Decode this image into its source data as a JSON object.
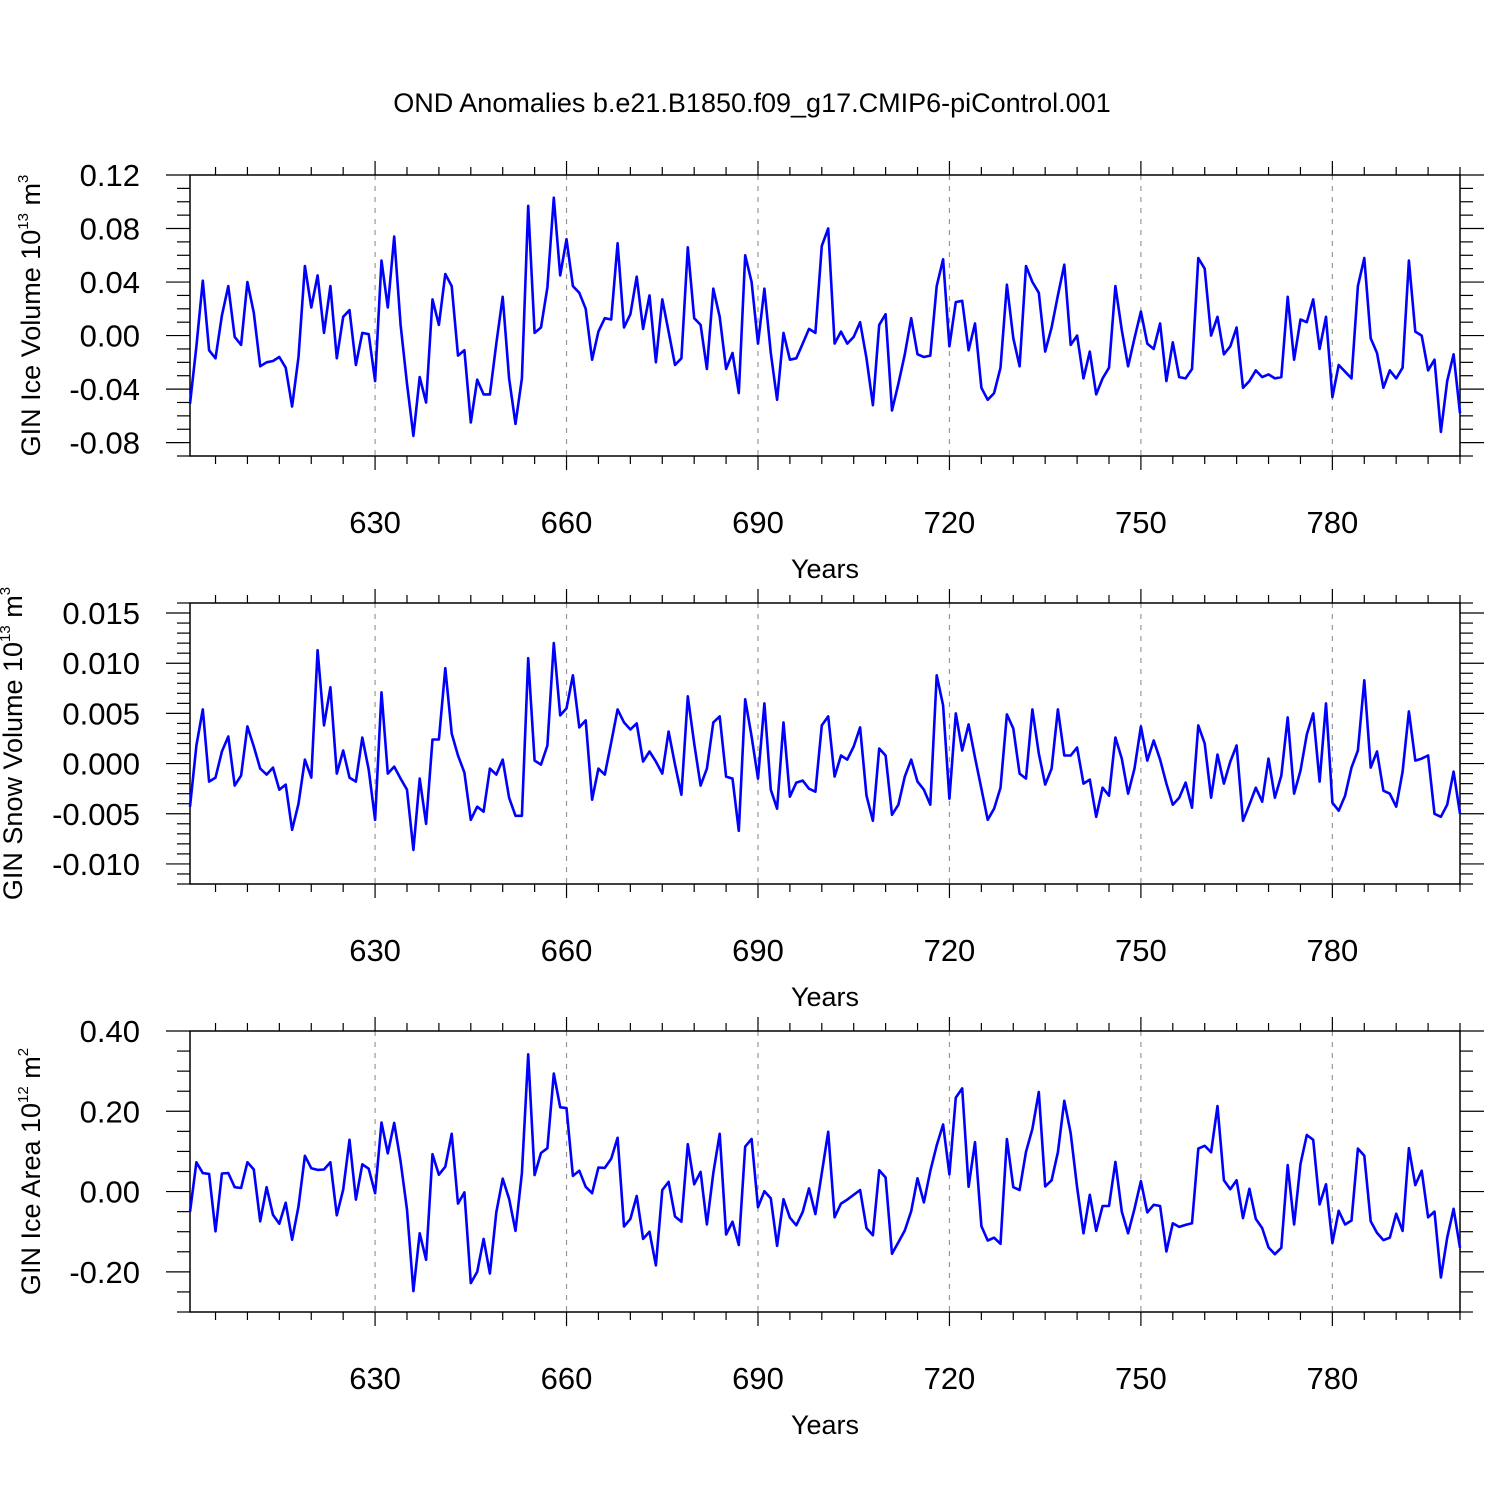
{
  "title": "OND Anomalies b.e21.B1850.f09_g17.CMIP6-piControl.001",
  "colors": {
    "line": "#0000ff",
    "grid": "#999999",
    "axis": "#000000"
  },
  "chart_data": [
    {
      "type": "line",
      "ylabel": {
        "text": "GIN Ice Volume 10",
        "exp": "13",
        "unit": " m",
        "unit_exp": "3"
      },
      "xlabel": "Years",
      "xlim": [
        601,
        800
      ],
      "ylim": [
        -0.09,
        0.12
      ],
      "x_ticks": [
        630,
        660,
        690,
        720,
        750,
        780
      ],
      "x_tick_labels": [
        "630",
        "660",
        "690",
        "720",
        "750",
        "780"
      ],
      "y_ticks": [
        -0.08,
        -0.04,
        0.0,
        0.04,
        0.08,
        0.12
      ],
      "y_tick_labels": [
        "-0.08",
        "-0.04",
        "0.00",
        "0.04",
        "0.08",
        "0.12"
      ],
      "y_minor_step": 0.01,
      "series": [
        {
          "name": "GIN Ice Volume",
          "x_start": 601,
          "values": [
            -0.051,
            -0.008,
            0.041,
            -0.011,
            -0.017,
            0.015,
            0.037,
            -0.001,
            -0.007,
            0.04,
            0.017,
            -0.023,
            -0.02,
            -0.019,
            -0.016,
            -0.024,
            -0.053,
            -0.016,
            0.052,
            0.021,
            0.045,
            0.002,
            0.037,
            -0.017,
            0.014,
            0.019,
            -0.022,
            0.002,
            0.001,
            -0.034,
            0.056,
            0.021,
            0.074,
            0.008,
            -0.036,
            -0.075,
            -0.031,
            -0.05,
            0.027,
            0.008,
            0.046,
            0.037,
            -0.015,
            -0.011,
            -0.065,
            -0.033,
            -0.044,
            -0.044,
            -0.006,
            0.029,
            -0.032,
            -0.066,
            -0.032,
            0.097,
            0.002,
            0.006,
            0.036,
            0.103,
            0.045,
            0.072,
            0.037,
            0.032,
            0.02,
            -0.018,
            0.003,
            0.013,
            0.012,
            0.069,
            0.006,
            0.016,
            0.044,
            0.005,
            0.03,
            -0.02,
            0.027,
            0.003,
            -0.022,
            -0.017,
            0.066,
            0.013,
            0.008,
            -0.025,
            0.035,
            0.014,
            -0.025,
            -0.013,
            -0.043,
            0.06,
            0.04,
            -0.006,
            0.035,
            -0.013,
            -0.048,
            0.002,
            -0.018,
            -0.017,
            -0.006,
            0.005,
            0.002,
            0.067,
            0.08,
            -0.006,
            0.003,
            -0.006,
            -0.001,
            0.01,
            -0.017,
            -0.052,
            0.008,
            0.016,
            -0.056,
            -0.036,
            -0.014,
            0.013,
            -0.014,
            -0.016,
            -0.015,
            0.037,
            0.057,
            -0.008,
            0.025,
            0.026,
            -0.011,
            0.009,
            -0.039,
            -0.048,
            -0.043,
            -0.024,
            0.038,
            -0.002,
            -0.023,
            0.052,
            0.04,
            0.032,
            -0.012,
            0.006,
            0.03,
            0.053,
            -0.007,
            0.0,
            -0.032,
            -0.012,
            -0.044,
            -0.032,
            -0.024,
            0.037,
            0.004,
            -0.023,
            -0.002,
            0.018,
            -0.006,
            -0.01,
            0.009,
            -0.034,
            -0.005,
            -0.031,
            -0.032,
            -0.025,
            0.058,
            0.05,
            0.0,
            0.014,
            -0.014,
            -0.008,
            0.006,
            -0.039,
            -0.034,
            -0.026,
            -0.031,
            -0.029,
            -0.032,
            -0.031,
            0.029,
            -0.018,
            0.012,
            0.01,
            0.027,
            -0.01,
            0.014,
            -0.046,
            -0.022,
            -0.027,
            -0.032,
            0.037,
            0.058,
            -0.002,
            -0.013,
            -0.039,
            -0.026,
            -0.032,
            -0.024,
            0.056,
            0.003,
            0.0,
            -0.026,
            -0.018,
            -0.072,
            -0.034,
            -0.014,
            -0.058
          ]
        }
      ]
    },
    {
      "type": "line",
      "ylabel": {
        "text": "GIN Snow Volume 10",
        "exp": "13",
        "unit": " m",
        "unit_exp": "3"
      },
      "xlabel": "Years",
      "xlim": [
        601,
        800
      ],
      "ylim": [
        -0.012,
        0.016
      ],
      "x_ticks": [
        630,
        660,
        690,
        720,
        750,
        780
      ],
      "x_tick_labels": [
        "630",
        "660",
        "690",
        "720",
        "750",
        "780"
      ],
      "y_ticks": [
        -0.01,
        -0.005,
        0.0,
        0.005,
        0.01,
        0.015
      ],
      "y_tick_labels": [
        "-0.010",
        "-0.005",
        "0.000",
        "0.005",
        "0.010",
        "0.015"
      ],
      "y_minor_step": 0.001,
      "series": [
        {
          "name": "GIN Snow Volume",
          "x_start": 601,
          "values": [
            -0.0043,
            0.0018,
            0.0054,
            -0.0018,
            -0.0014,
            0.0012,
            0.0027,
            -0.0022,
            -0.0012,
            0.0037,
            0.0017,
            -0.0005,
            -0.0011,
            -0.0004,
            -0.0026,
            -0.0021,
            -0.0066,
            -0.004,
            0.0004,
            -0.0014,
            0.0113,
            0.0038,
            0.0076,
            -0.001,
            0.0013,
            -0.0014,
            -0.0018,
            0.0026,
            -0.0006,
            -0.0056,
            0.0071,
            -0.001,
            -0.0003,
            -0.0015,
            -0.0026,
            -0.0086,
            -0.0015,
            -0.006,
            0.0024,
            0.0024,
            0.0095,
            0.003,
            0.0008,
            -0.0009,
            -0.0056,
            -0.0043,
            -0.0048,
            -0.0005,
            -0.0011,
            0.0004,
            -0.0034,
            -0.0052,
            -0.0052,
            0.0105,
            0.0003,
            -0.0001,
            0.0018,
            0.012,
            0.0048,
            0.0055,
            0.0088,
            0.0036,
            0.0043,
            -0.0036,
            -0.0005,
            -0.0011,
            0.0021,
            0.0054,
            0.0041,
            0.0034,
            0.004,
            0.0002,
            0.0012,
            0.0002,
            -0.001,
            0.0032,
            -0.0001,
            -0.0031,
            0.0067,
            0.002,
            -0.0022,
            -0.0005,
            0.0041,
            0.0047,
            -0.0013,
            -0.0015,
            -0.0067,
            0.0064,
            0.0027,
            -0.0015,
            0.006,
            -0.0026,
            -0.0045,
            0.0041,
            -0.0033,
            -0.0019,
            -0.0017,
            -0.0025,
            -0.0028,
            0.0038,
            0.0047,
            -0.0013,
            0.0008,
            0.0004,
            0.0017,
            0.0036,
            -0.0032,
            -0.0057,
            0.0015,
            0.0008,
            -0.0051,
            -0.0041,
            -0.0013,
            0.0004,
            -0.0018,
            -0.0026,
            -0.0041,
            0.0088,
            0.0058,
            -0.0035,
            0.005,
            0.0013,
            0.0039,
            0.0006,
            -0.0025,
            -0.0056,
            -0.0045,
            -0.0024,
            0.0049,
            0.0035,
            -0.001,
            -0.0015,
            0.0054,
            0.001,
            -0.0021,
            -0.0005,
            0.0054,
            0.0008,
            0.0008,
            0.0016,
            -0.002,
            -0.0016,
            -0.0053,
            -0.0024,
            -0.0032,
            0.0026,
            0.0005,
            -0.003,
            -0.0005,
            0.0037,
            0.0003,
            0.0023,
            0.0004,
            -0.002,
            -0.0041,
            -0.0034,
            -0.0019,
            -0.0044,
            0.0038,
            0.002,
            -0.0034,
            0.0009,
            -0.002,
            0.0002,
            0.0018,
            -0.0057,
            -0.0041,
            -0.0024,
            -0.0038,
            0.0005,
            -0.0034,
            -0.0012,
            0.0046,
            -0.003,
            -0.0007,
            0.0029,
            0.005,
            -0.0018,
            0.006,
            -0.0039,
            -0.0047,
            -0.0032,
            -0.0004,
            0.0013,
            0.0083,
            -0.0004,
            0.0012,
            -0.0027,
            -0.003,
            -0.0043,
            -0.0008,
            0.0052,
            0.0003,
            0.0005,
            0.0008,
            -0.005,
            -0.0053,
            -0.0041,
            -0.0008,
            -0.005
          ]
        }
      ]
    },
    {
      "type": "line",
      "ylabel": {
        "text": "GIN Ice Area 10",
        "exp": "12",
        "unit": " m",
        "unit_exp": "2"
      },
      "xlabel": "Years",
      "xlim": [
        601,
        800
      ],
      "ylim": [
        -0.3,
        0.4
      ],
      "x_ticks": [
        630,
        660,
        690,
        720,
        750,
        780
      ],
      "x_tick_labels": [
        "630",
        "660",
        "690",
        "720",
        "750",
        "780"
      ],
      "y_ticks": [
        -0.2,
        0.0,
        0.2,
        0.4
      ],
      "y_tick_labels": [
        "-0.20",
        "0.00",
        "0.20",
        "0.40"
      ],
      "y_minor_step": 0.05,
      "series": [
        {
          "name": "GIN Ice Area",
          "x_start": 601,
          "values": [
            -0.051,
            0.073,
            0.046,
            0.044,
            -0.099,
            0.045,
            0.046,
            0.011,
            0.009,
            0.073,
            0.055,
            -0.074,
            0.011,
            -0.058,
            -0.08,
            -0.028,
            -0.12,
            -0.037,
            0.089,
            0.058,
            0.054,
            0.055,
            0.073,
            -0.059,
            0.005,
            0.129,
            -0.02,
            0.068,
            0.057,
            -0.004,
            0.172,
            0.095,
            0.171,
            0.075,
            -0.045,
            -0.248,
            -0.104,
            -0.17,
            0.093,
            0.042,
            0.062,
            0.144,
            -0.03,
            -0.002,
            -0.228,
            -0.2,
            -0.118,
            -0.204,
            -0.052,
            0.032,
            -0.018,
            -0.098,
            0.046,
            0.342,
            0.041,
            0.096,
            0.108,
            0.294,
            0.21,
            0.208,
            0.039,
            0.052,
            0.012,
            -0.004,
            0.06,
            0.059,
            0.082,
            0.134,
            -0.087,
            -0.068,
            -0.011,
            -0.118,
            -0.1,
            -0.184,
            0.004,
            0.024,
            -0.062,
            -0.075,
            0.118,
            0.018,
            0.049,
            -0.082,
            0.046,
            0.144,
            -0.107,
            -0.075,
            -0.133,
            0.112,
            0.131,
            -0.039,
            0.001,
            -0.017,
            -0.135,
            -0.019,
            -0.065,
            -0.084,
            -0.051,
            0.008,
            -0.056,
            0.046,
            0.149,
            -0.064,
            -0.03,
            -0.02,
            -0.008,
            0.004,
            -0.091,
            -0.109,
            0.053,
            0.035,
            -0.155,
            -0.126,
            -0.097,
            -0.049,
            0.033,
            -0.027,
            0.051,
            0.115,
            0.167,
            0.043,
            0.234,
            0.257,
            0.012,
            0.123,
            -0.086,
            -0.122,
            -0.115,
            -0.13,
            0.131,
            0.011,
            0.004,
            0.099,
            0.156,
            0.248,
            0.013,
            0.028,
            0.098,
            0.226,
            0.145,
            0.011,
            -0.104,
            -0.008,
            -0.098,
            -0.036,
            -0.036,
            0.074,
            -0.05,
            -0.104,
            -0.043,
            0.026,
            -0.052,
            -0.033,
            -0.036,
            -0.149,
            -0.079,
            -0.088,
            -0.083,
            -0.079,
            0.107,
            0.114,
            0.098,
            0.213,
            0.028,
            0.006,
            0.028,
            -0.066,
            0.007,
            -0.068,
            -0.091,
            -0.139,
            -0.156,
            -0.14,
            0.066,
            -0.082,
            0.069,
            0.141,
            0.129,
            -0.032,
            0.018,
            -0.128,
            -0.048,
            -0.082,
            -0.072,
            0.107,
            0.089,
            -0.074,
            -0.103,
            -0.121,
            -0.115,
            -0.055,
            -0.098,
            0.108,
            0.016,
            0.052,
            -0.064,
            -0.05,
            -0.214,
            -0.115,
            -0.043,
            -0.14
          ]
        }
      ]
    }
  ]
}
